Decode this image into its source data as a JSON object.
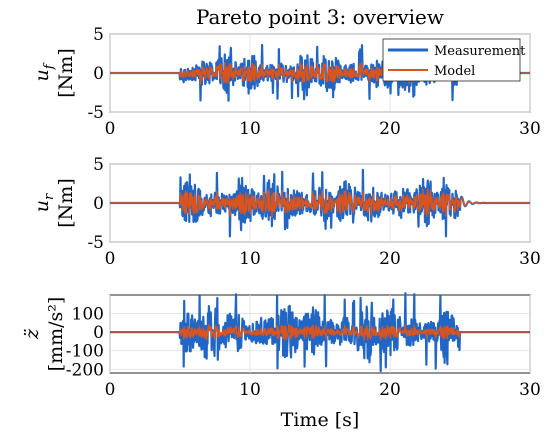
{
  "chart_data": [
    {
      "type": "line",
      "title": "Pareto point 3: overview",
      "ylabel_sym": "u",
      "ylabel_sub": "f",
      "ylabel_unit": "[Nm]",
      "xlim": [
        0,
        30
      ],
      "ylim": [
        -5,
        5
      ],
      "xticks": [
        "0",
        "10",
        "20",
        "30"
      ],
      "yticks": [
        "-5",
        "0",
        "5"
      ],
      "grid": true,
      "legend": {
        "position": "top-right",
        "entries": [
          "Measurement",
          "Model"
        ]
      },
      "signal": {
        "active_interval": [
          5,
          25
        ],
        "measurement_peak_approx": 3.6,
        "model_peak_approx": 2.0
      },
      "series": [
        {
          "name": "Measurement",
          "color": "#2166c4"
        },
        {
          "name": "Model",
          "color": "#d9541e"
        }
      ]
    },
    {
      "type": "line",
      "ylabel_sym": "u",
      "ylabel_sub": "r",
      "ylabel_unit": "[Nm]",
      "xlim": [
        0,
        30
      ],
      "ylim": [
        -5,
        5
      ],
      "xticks": [
        "0",
        "10",
        "20",
        "30"
      ],
      "yticks": [
        "-5",
        "0",
        "5"
      ],
      "grid": true,
      "signal": {
        "active_interval": [
          5,
          25
        ],
        "measurement_peak_approx": 4.3,
        "model_peak_approx": 2.5
      },
      "series": [
        {
          "name": "Measurement",
          "color": "#2166c4"
        },
        {
          "name": "Model",
          "color": "#d9541e"
        }
      ]
    },
    {
      "type": "line",
      "ylabel_sym": "z̈",
      "ylabel_unit": "[mm/s²]",
      "xlabel": "Time [s]",
      "xlim": [
        0,
        30
      ],
      "ylim": [
        -220,
        200
      ],
      "xticks": [
        "0",
        "10",
        "20",
        "30"
      ],
      "yticks": [
        "-200",
        "-100",
        "0",
        "100"
      ],
      "grid": true,
      "signal": {
        "active_interval": [
          5,
          25
        ],
        "measurement_peak_approx": 210,
        "model_peak_approx": 60
      },
      "series": [
        {
          "name": "Measurement",
          "color": "#2166c4"
        },
        {
          "name": "Model",
          "color": "#d9541e"
        }
      ]
    }
  ]
}
